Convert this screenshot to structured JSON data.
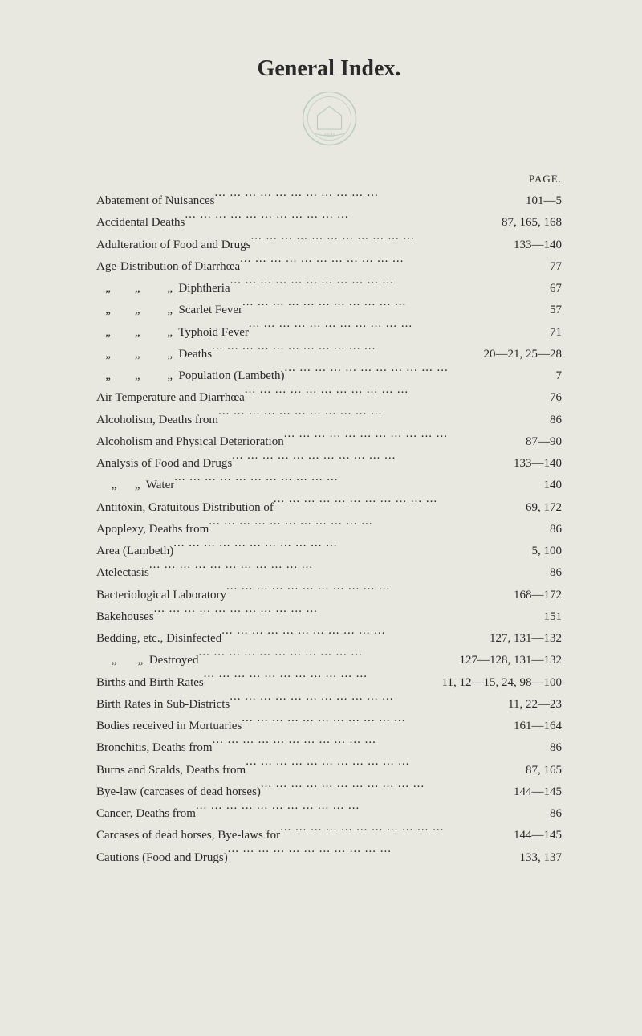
{
  "document": {
    "title": "General Index.",
    "page_label": "PAGE.",
    "background_color": "#e8e8e0",
    "text_color": "#2a2a2a",
    "seal_color": "#3a7a6a",
    "title_fontsize": 28,
    "body_fontsize": 15,
    "line_height": 1.55
  },
  "entries": [
    {
      "label": "Abatement of Nuisances",
      "page": "101—5",
      "indent": 0
    },
    {
      "label": "Accidental Deaths",
      "page": "87, 165, 168",
      "indent": 0
    },
    {
      "label": "Adulteration of Food and Drugs",
      "page": "133—140",
      "indent": 0
    },
    {
      "label": "Age-Distribution of Diarrhœa",
      "page": "77",
      "indent": 0
    },
    {
      "label": "   „        „         „  Diphtheria",
      "page": "67",
      "indent": 1
    },
    {
      "label": "   „        „         „  Scarlet Fever",
      "page": "57",
      "indent": 1
    },
    {
      "label": "   „        „         „  Typhoid Fever",
      "page": "71",
      "indent": 1
    },
    {
      "label": "   „        „         „  Deaths",
      "page": "20—21, 25—28",
      "indent": 1
    },
    {
      "label": "   „        „         „  Population (Lambeth)",
      "page": "7",
      "indent": 1
    },
    {
      "label": "Air Temperature and Diarrhœa",
      "page": "76",
      "indent": 0
    },
    {
      "label": "Alcoholism, Deaths from",
      "page": "86",
      "indent": 0
    },
    {
      "label": "Alcoholism and Physical Deterioration",
      "page": "87—90",
      "indent": 0
    },
    {
      "label": "Analysis of Food and Drugs",
      "page": "133—140",
      "indent": 0
    },
    {
      "label": "     „      „  Water",
      "page": "140",
      "indent": 1
    },
    {
      "label": "Antitoxin, Gratuitous Distribution of",
      "page": "69, 172",
      "indent": 0
    },
    {
      "label": "Apoplexy, Deaths from",
      "page": "86",
      "indent": 0
    },
    {
      "label": "Area (Lambeth)",
      "page": "5, 100",
      "indent": 0
    },
    {
      "label": "Atelectasis",
      "page": "86",
      "indent": 0
    },
    {
      "label": "Bacteriological Laboratory",
      "page": "168—172",
      "indent": 0
    },
    {
      "label": "Bakehouses",
      "page": "151",
      "indent": 0
    },
    {
      "label": "Bedding, etc., Disinfected",
      "page": "127, 131—132",
      "indent": 0
    },
    {
      "label": "     „       „  Destroyed",
      "page": "127—128, 131—132",
      "indent": 1
    },
    {
      "label": "Births and Birth Rates",
      "page": "11, 12—15, 24, 98—100",
      "indent": 0
    },
    {
      "label": "Birth Rates in Sub-Districts",
      "page": "11, 22—23",
      "indent": 0
    },
    {
      "label": "Bodies received in Mortuaries",
      "page": "161—164",
      "indent": 0
    },
    {
      "label": "Bronchitis, Deaths from",
      "page": "86",
      "indent": 0
    },
    {
      "label": "Burns and Scalds, Deaths from",
      "page": "87, 165",
      "indent": 0
    },
    {
      "label": "Bye-law (carcases of dead horses)",
      "page": "144—145",
      "indent": 0
    },
    {
      "label": "Cancer, Deaths from",
      "page": "86",
      "indent": 0
    },
    {
      "label": "Carcases of dead horses, Bye-laws for",
      "page": "144—145",
      "indent": 0
    },
    {
      "label": "Cautions (Food and Drugs)",
      "page": "133, 137",
      "indent": 0
    }
  ]
}
